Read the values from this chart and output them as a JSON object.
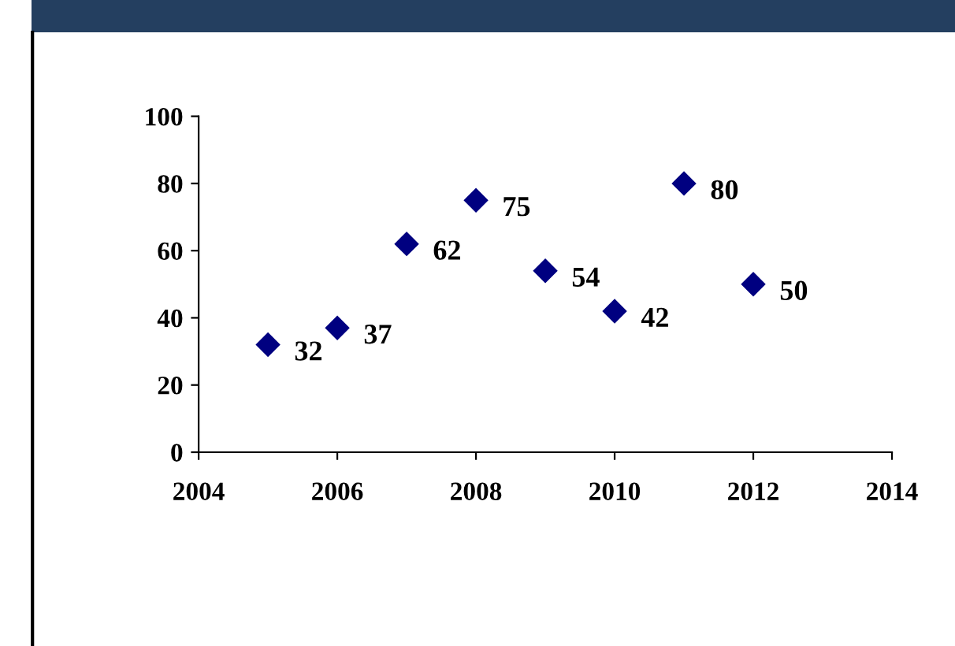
{
  "chart_data": {
    "type": "scatter",
    "x": [
      2005,
      2006,
      2007,
      2008,
      2009,
      2010,
      2011,
      2012
    ],
    "values": [
      32,
      37,
      62,
      75,
      54,
      42,
      80,
      50
    ],
    "color": "#000080",
    "marker": "diamond",
    "data_labels": true,
    "xlim": [
      2004,
      2014
    ],
    "xticks": [
      2004,
      2006,
      2008,
      2010,
      2012,
      2014
    ],
    "ylim": [
      0,
      100
    ],
    "yticks": [
      0,
      20,
      40,
      60,
      80,
      100
    ],
    "grid": false,
    "legend": false
  }
}
